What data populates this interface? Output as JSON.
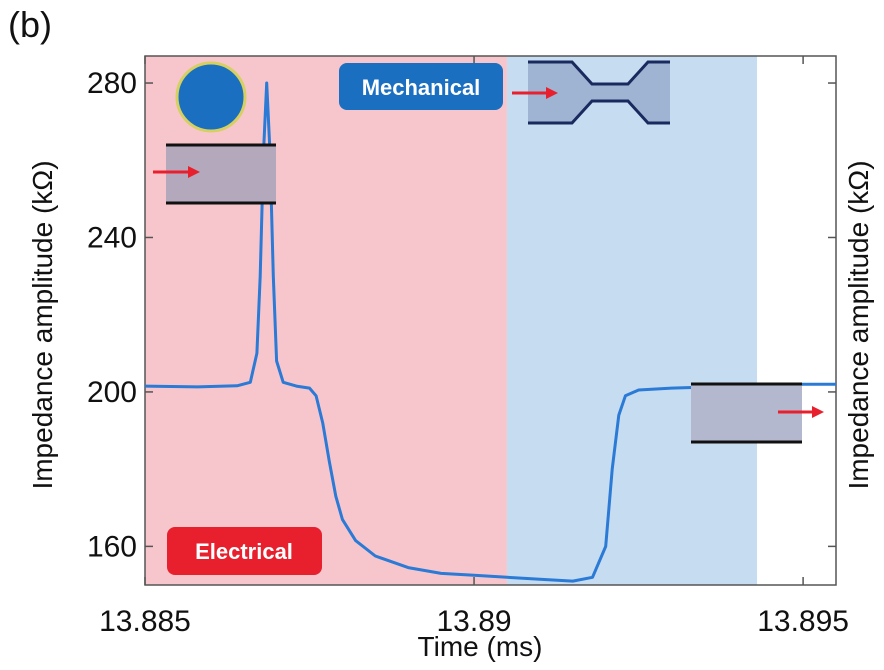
{
  "panel_label": "(b)",
  "chart_data": {
    "type": "line",
    "title": "",
    "xlabel": "Time (ms)",
    "ylabel_left": "Impedance amplitude (kΩ)",
    "ylabel_right": "Impedance amplitude (kΩ)",
    "xlim": [
      13.885,
      13.8955
    ],
    "ylim": [
      150,
      287
    ],
    "x_ticks": [
      {
        "value": 13.885,
        "label": "13.885"
      },
      {
        "value": 13.89,
        "label": "13.89"
      },
      {
        "value": 13.895,
        "label": "13.895"
      }
    ],
    "y_ticks": [
      {
        "value": 160,
        "label": "160"
      },
      {
        "value": 200,
        "label": "200"
      },
      {
        "value": 240,
        "label": "240"
      },
      {
        "value": 280,
        "label": "280"
      }
    ],
    "regions": [
      {
        "name": "electrical",
        "label": "Electrical",
        "x_start": 13.885,
        "x_end": 13.8905,
        "color": "#f7c6cc",
        "badge_color": "#e8202d"
      },
      {
        "name": "mechanical",
        "label": "Mechanical",
        "x_start": 13.8905,
        "x_end": 13.8943,
        "color": "#c6dcf1",
        "badge_color": "#1b6fc0"
      }
    ],
    "series": [
      {
        "color": "#2a7ad6",
        "points": [
          [
            13.885,
            201.5
          ],
          [
            13.8858,
            201.3
          ],
          [
            13.8864,
            201.6
          ],
          [
            13.8866,
            202.5
          ],
          [
            13.8867,
            210
          ],
          [
            13.88675,
            230
          ],
          [
            13.8868,
            262
          ],
          [
            13.88685,
            280
          ],
          [
            13.8869,
            262
          ],
          [
            13.88695,
            230
          ],
          [
            13.887,
            208
          ],
          [
            13.8871,
            202.5
          ],
          [
            13.8873,
            201.5
          ],
          [
            13.8875,
            201
          ],
          [
            13.8876,
            199
          ],
          [
            13.8877,
            192
          ],
          [
            13.8878,
            182
          ],
          [
            13.8879,
            173
          ],
          [
            13.888,
            167
          ],
          [
            13.8882,
            161.5
          ],
          [
            13.8885,
            157.5
          ],
          [
            13.889,
            154.5
          ],
          [
            13.8895,
            153
          ],
          [
            13.89,
            152.5
          ],
          [
            13.8905,
            152
          ],
          [
            13.891,
            151.5
          ],
          [
            13.8915,
            151
          ],
          [
            13.8918,
            152
          ],
          [
            13.892,
            160
          ],
          [
            13.8921,
            180
          ],
          [
            13.8922,
            194
          ],
          [
            13.8923,
            199
          ],
          [
            13.8925,
            200.5
          ],
          [
            13.893,
            201
          ],
          [
            13.894,
            201.5
          ],
          [
            13.895,
            202
          ],
          [
            13.8955,
            202
          ]
        ]
      }
    ],
    "grid": false,
    "legend": "none"
  },
  "colors": {
    "electrical_bg": "#f7c6cc",
    "mechanical_bg": "#c6dcf1",
    "line": "#2a7ad6",
    "arrow": "#e8202d",
    "cell": "#1b6fc0",
    "channel_fill": "#b4b8cf"
  },
  "icons": [
    "cell-circle-icon",
    "channel-left-icon",
    "constriction-icon",
    "channel-right-icon"
  ]
}
